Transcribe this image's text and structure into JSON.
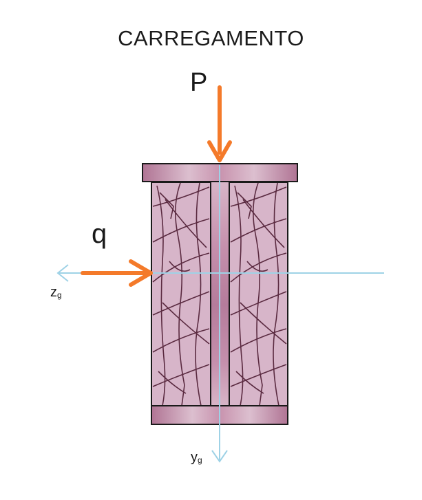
{
  "title": "CARREGAMENTO",
  "loads": {
    "point_load": "P",
    "distributed_load": "q"
  },
  "axes": {
    "z": {
      "letter": "z",
      "subscript": "g"
    },
    "y": {
      "letter": "y",
      "subscript": "g"
    }
  },
  "colors": {
    "load_arrow": "#f47a2a",
    "axis": "#9ed2e6",
    "section_fill": "#d7b5c9",
    "flange_dark": "#b07494",
    "crack_line": "#5a2a40",
    "outline": "#1a1a1a"
  }
}
